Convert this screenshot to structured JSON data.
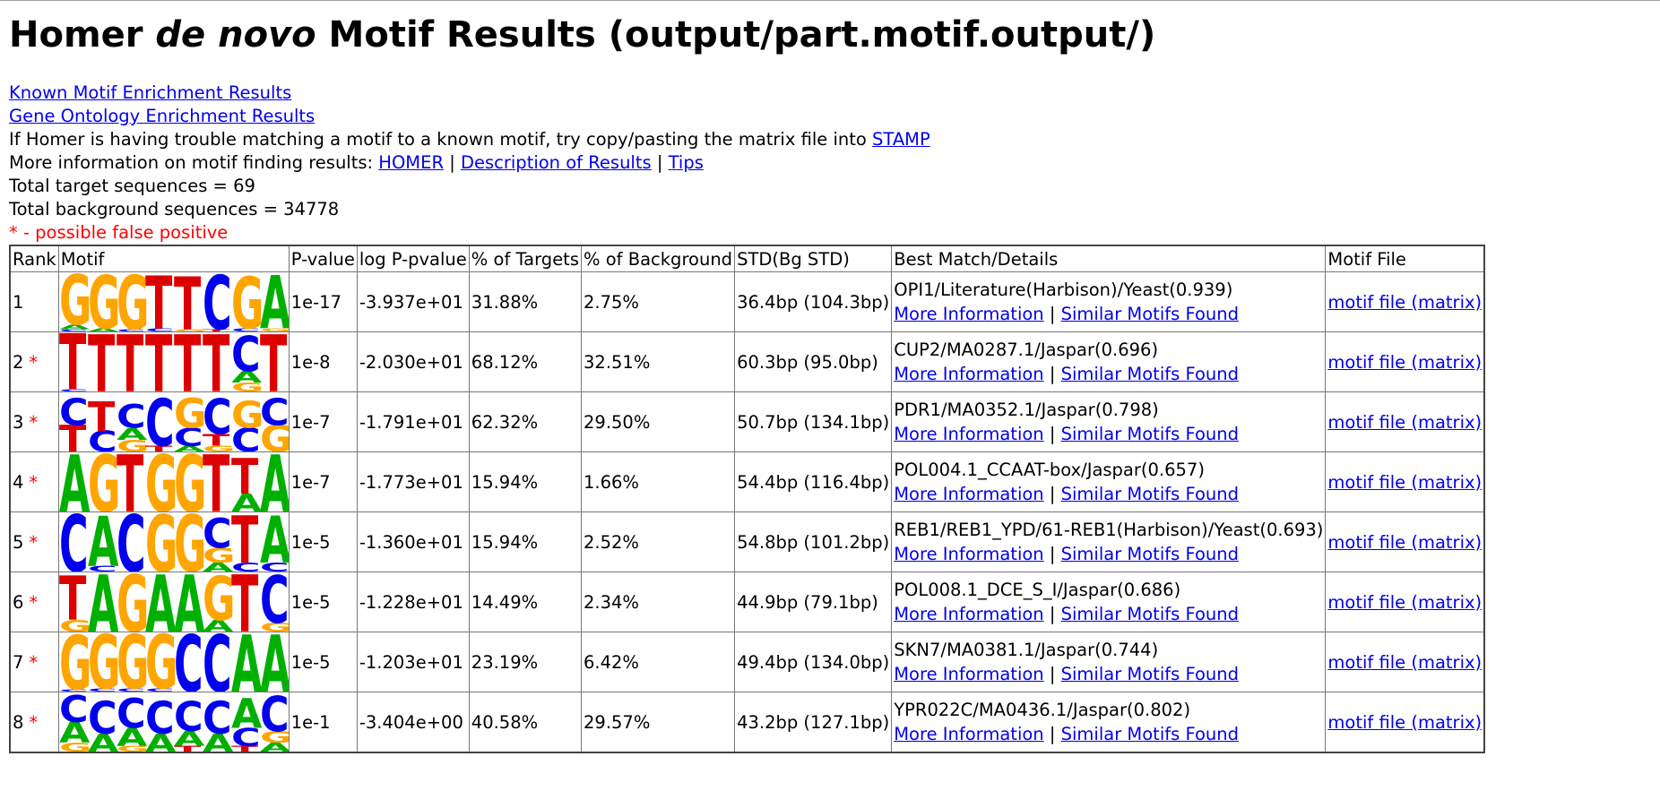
{
  "page": {
    "title_pre": "Homer ",
    "title_em": "de novo",
    "title_post": " Motif Results (output/part.motif.output/)"
  },
  "links": {
    "known": "Known Motif Enrichment Results",
    "go": "Gene Ontology Enrichment Results"
  },
  "info": {
    "stamp_text": "If Homer is having trouble matching a motif to a known motif, try copy/pasting the matrix file into ",
    "stamp_link": "STAMP",
    "more_text": "More information on motif finding results: ",
    "homer_link": "HOMER",
    "sep": " | ",
    "desc_link": "Description of Results",
    "tips_link": "Tips",
    "total_target": "Total target sequences = 69",
    "total_background": "Total background sequences = 34778",
    "false_positive": "* - possible false positive"
  },
  "colors": {
    "A": "#00b000",
    "C": "#0000ee",
    "G": "#ffa500",
    "T": "#dd0000"
  },
  "table": {
    "headers": [
      "Rank",
      "Motif",
      "P-value",
      "log P-pvalue",
      "% of Targets",
      "% of Background",
      "STD(Bg STD)",
      "Best Match/Details",
      "Motif File"
    ],
    "more_info": "More Information",
    "link_sep": " | ",
    "similar": "Similar Motifs Found",
    "motif_file": "motif file (matrix)",
    "rows": [
      {
        "rank": "1",
        "star": "",
        "p": "1e-17",
        "logp": "-3.937e+01",
        "targets": "31.88%",
        "bg": "2.75%",
        "std": "36.4bp (104.3bp)",
        "match": "OPI1/Literature(Harbison)/Yeast(0.939)",
        "logo": [
          [
            [
              "G",
              0.85
            ],
            [
              "A",
              0.08
            ],
            [
              "C",
              0.04
            ]
          ],
          [
            [
              "G",
              0.9
            ],
            [
              "A",
              0.05
            ]
          ],
          [
            [
              "G",
              0.92
            ],
            [
              "C",
              0.04
            ]
          ],
          [
            [
              "T",
              0.9
            ],
            [
              "C",
              0.05
            ]
          ],
          [
            [
              "T",
              0.9
            ],
            [
              "G",
              0.04
            ]
          ],
          [
            [
              "C",
              0.92
            ],
            [
              "T",
              0.04
            ]
          ],
          [
            [
              "G",
              0.88
            ],
            [
              "C",
              0.05
            ]
          ],
          [
            [
              "A",
              0.9
            ],
            [
              "G",
              0.05
            ]
          ]
        ]
      },
      {
        "rank": "2",
        "star": "*",
        "p": "1e-8",
        "logp": "-2.030e+01",
        "targets": "68.12%",
        "bg": "32.51%",
        "std": "60.3bp (95.0bp)",
        "match": "CUP2/MA0287.1/Jaspar(0.696)",
        "logo": [
          [
            [
              "T",
              0.95
            ],
            [
              "C",
              0.04
            ]
          ],
          [
            [
              "T",
              0.97
            ]
          ],
          [
            [
              "T",
              0.97
            ]
          ],
          [
            [
              "T",
              0.97
            ]
          ],
          [
            [
              "T",
              0.97
            ]
          ],
          [
            [
              "T",
              0.97
            ]
          ],
          [
            [
              "C",
              0.6
            ],
            [
              "A",
              0.2
            ],
            [
              "G",
              0.15
            ]
          ],
          [
            [
              "T",
              0.97
            ]
          ]
        ]
      },
      {
        "rank": "3",
        "star": "*",
        "p": "1e-7",
        "logp": "-1.791e+01",
        "targets": "62.32%",
        "bg": "29.50%",
        "std": "50.7bp (134.1bp)",
        "match": "PDR1/MA0352.1/Jaspar(0.798)",
        "logo": [
          [
            [
              "T",
              0.45
            ],
            [
              "C",
              0.45
            ]
          ],
          [
            [
              "T",
              0.5
            ],
            [
              "C",
              0.35
            ]
          ],
          [
            [
              "C",
              0.4
            ],
            [
              "G",
              0.2
            ],
            [
              "A",
              0.2
            ]
          ],
          [
            [
              "C",
              0.8
            ],
            [
              "T",
              0.1
            ]
          ],
          [
            [
              "G",
              0.5
            ],
            [
              "C",
              0.3
            ],
            [
              "A",
              0.1
            ]
          ],
          [
            [
              "C",
              0.6
            ],
            [
              "T",
              0.2
            ],
            [
              "G",
              0.1
            ]
          ],
          [
            [
              "G",
              0.45
            ],
            [
              "C",
              0.4
            ]
          ],
          [
            [
              "G",
              0.45
            ],
            [
              "C",
              0.45
            ]
          ]
        ]
      },
      {
        "rank": "4",
        "star": "*",
        "p": "1e-7",
        "logp": "-1.773e+01",
        "targets": "15.94%",
        "bg": "1.66%",
        "std": "54.4bp (116.4bp)",
        "match": "POL004.1_CCAAT-box/Jaspar(0.657)",
        "logo": [
          [
            [
              "A",
              0.97
            ]
          ],
          [
            [
              "G",
              0.97
            ]
          ],
          [
            [
              "T",
              0.97
            ]
          ],
          [
            [
              "G",
              0.97
            ]
          ],
          [
            [
              "G",
              0.97
            ]
          ],
          [
            [
              "T",
              0.97
            ]
          ],
          [
            [
              "T",
              0.6
            ],
            [
              "A",
              0.3
            ]
          ],
          [
            [
              "A",
              0.97
            ]
          ]
        ]
      },
      {
        "rank": "5",
        "star": "*",
        "p": "1e-5",
        "logp": "-1.360e+01",
        "targets": "15.94%",
        "bg": "2.52%",
        "std": "54.8bp (101.2bp)",
        "match": "REB1/REB1_YPD/61-REB1(Harbison)/Yeast(0.693)",
        "logo": [
          [
            [
              "C",
              0.97
            ]
          ],
          [
            [
              "A",
              0.85
            ],
            [
              "C",
              0.1
            ]
          ],
          [
            [
              "C",
              0.97
            ]
          ],
          [
            [
              "G",
              0.97
            ]
          ],
          [
            [
              "G",
              0.97
            ]
          ],
          [
            [
              "C",
              0.5
            ],
            [
              "G",
              0.25
            ],
            [
              "A",
              0.15
            ]
          ],
          [
            [
              "T",
              0.8
            ],
            [
              "C",
              0.15
            ]
          ],
          [
            [
              "A",
              0.8
            ],
            [
              "C",
              0.15
            ]
          ]
        ]
      },
      {
        "rank": "6",
        "star": "*",
        "p": "1e-5",
        "logp": "-1.228e+01",
        "targets": "14.49%",
        "bg": "2.34%",
        "std": "44.9bp (79.1bp)",
        "match": "POL008.1_DCE_S_I/Jaspar(0.686)",
        "logo": [
          [
            [
              "T",
              0.75
            ],
            [
              "G",
              0.2
            ]
          ],
          [
            [
              "A",
              0.97
            ]
          ],
          [
            [
              "G",
              0.97
            ]
          ],
          [
            [
              "A",
              0.97
            ]
          ],
          [
            [
              "A",
              0.97
            ]
          ],
          [
            [
              "G",
              0.75
            ],
            [
              "A",
              0.2
            ]
          ],
          [
            [
              "T",
              0.97
            ]
          ],
          [
            [
              "C",
              0.8
            ],
            [
              "G",
              0.15
            ]
          ]
        ]
      },
      {
        "rank": "7",
        "star": "*",
        "p": "1e-5",
        "logp": "-1.203e+01",
        "targets": "23.19%",
        "bg": "6.42%",
        "std": "49.4bp (134.0bp)",
        "match": "SKN7/MA0381.1/Jaspar(0.744)",
        "logo": [
          [
            [
              "G",
              0.92
            ],
            [
              "C",
              0.04
            ]
          ],
          [
            [
              "G",
              0.92
            ],
            [
              "C",
              0.05
            ]
          ],
          [
            [
              "G",
              0.92
            ],
            [
              "C",
              0.05
            ]
          ],
          [
            [
              "G",
              0.92
            ],
            [
              "C",
              0.05
            ]
          ],
          [
            [
              "C",
              0.97
            ]
          ],
          [
            [
              "C",
              0.97
            ]
          ],
          [
            [
              "A",
              0.97
            ]
          ],
          [
            [
              "A",
              0.97
            ]
          ]
        ]
      },
      {
        "rank": "8",
        "star": "*",
        "p": "1e-1",
        "logp": "-3.404e+00",
        "targets": "40.58%",
        "bg": "29.57%",
        "std": "43.2bp (127.1bp)",
        "match": "YPR022C/MA0436.1/Jaspar(0.802)",
        "logo": [
          [
            [
              "C",
              0.45
            ],
            [
              "A",
              0.35
            ],
            [
              "G",
              0.15
            ]
          ],
          [
            [
              "C",
              0.55
            ],
            [
              "A",
              0.3
            ]
          ],
          [
            [
              "C",
              0.5
            ],
            [
              "A",
              0.3
            ],
            [
              "G",
              0.1
            ]
          ],
          [
            [
              "C",
              0.55
            ],
            [
              "A",
              0.3
            ]
          ],
          [
            [
              "C",
              0.5
            ],
            [
              "A",
              0.25
            ],
            [
              "T",
              0.1
            ]
          ],
          [
            [
              "C",
              0.55
            ],
            [
              "A",
              0.3
            ]
          ],
          [
            [
              "A",
              0.5
            ],
            [
              "C",
              0.3
            ],
            [
              "T",
              0.1
            ]
          ],
          [
            [
              "C",
              0.6
            ],
            [
              "G",
              0.2
            ],
            [
              "A",
              0.15
            ]
          ]
        ]
      }
    ]
  }
}
